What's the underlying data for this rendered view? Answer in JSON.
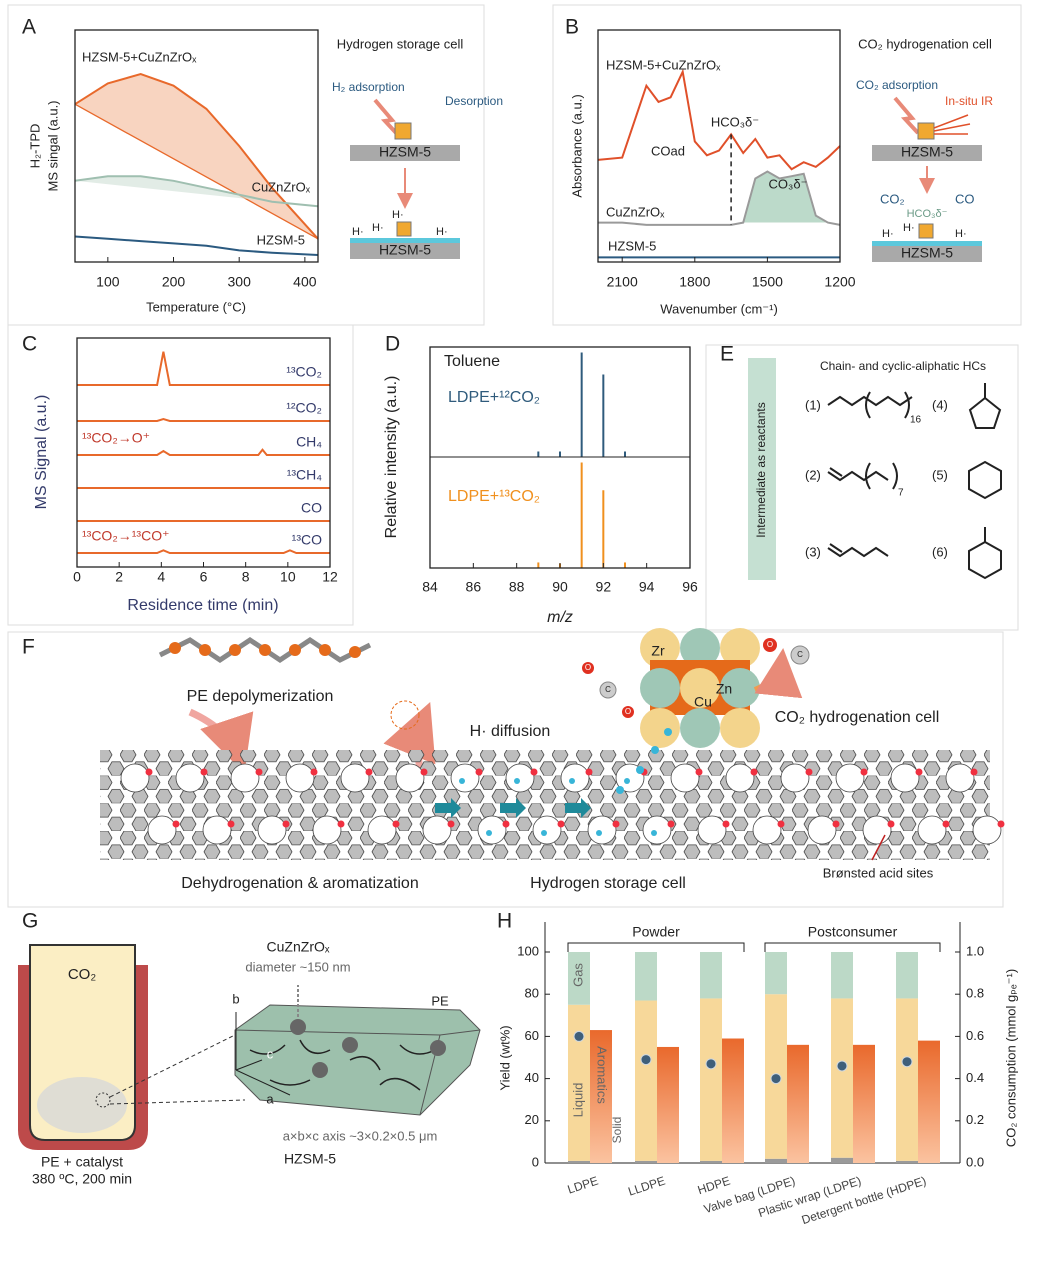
{
  "panel_labels": [
    "A",
    "B",
    "C",
    "D",
    "E",
    "F",
    "G",
    "H"
  ],
  "chart_data": [
    {
      "type": "line",
      "ylabel": [
        "H₂-TPD",
        "MS singal (a.u.)"
      ],
      "xlabel": "Temperature (°C)",
      "x": [
        50,
        100,
        150,
        200,
        250,
        300,
        350,
        420
      ],
      "xlim": [
        50,
        420
      ],
      "xticks": [
        100,
        200,
        300,
        400
      ],
      "ylim": [
        0,
        10
      ],
      "series": [
        {
          "name": "HZSM-5+CuZnZrOₓ",
          "color": "#e8692b",
          "values": [
            6.8,
            7.7,
            8.1,
            7.6,
            6.6,
            5.0,
            3.2,
            1.0
          ]
        },
        {
          "name": "CuZnZrOₓ",
          "color": "#9fbfb0",
          "values": [
            3.5,
            3.7,
            3.7,
            3.5,
            3.2,
            2.9,
            2.6,
            2.4
          ]
        },
        {
          "name": "HZSM-5",
          "color": "#2b5a80",
          "values": [
            1.1,
            1.0,
            0.9,
            0.8,
            0.7,
            0.5,
            0.4,
            0.3
          ]
        }
      ]
    },
    {
      "type": "line",
      "ylabel": "Absorbance (a.u.)",
      "xlabel": "Wavenumber (cm⁻¹)",
      "x": [
        2200,
        2100,
        2000,
        1950,
        1900,
        1850,
        1800,
        1750,
        1700,
        1650,
        1600,
        1550,
        1500,
        1450,
        1400,
        1350,
        1300,
        1250,
        1200
      ],
      "xlim": [
        2200,
        1200
      ],
      "xticks": [
        2100,
        1800,
        1500,
        1200
      ],
      "ylim": [
        0,
        10
      ],
      "annotations": [
        "HCO₃δ⁻",
        "COad",
        "CO₃δ⁻"
      ],
      "series": [
        {
          "name": "HZSM-5+CuZnZrOₓ",
          "color": "#e0502a",
          "values": [
            4.4,
            4.5,
            7.6,
            6.9,
            7.1,
            8.2,
            5.2,
            4.6,
            4.8,
            5.5,
            4.7,
            5.3,
            4.5,
            4.6,
            4.0,
            4.3,
            4.1,
            4.5,
            5.0
          ]
        },
        {
          "name": "CuZnZrOₓ",
          "color": "#9a9a9a",
          "values": [
            1.7,
            1.7,
            1.6,
            1.6,
            1.6,
            1.6,
            1.6,
            1.6,
            1.6,
            1.6,
            1.7,
            3.6,
            3.9,
            3.6,
            3.7,
            3.8,
            2.0,
            1.7,
            1.6
          ]
        },
        {
          "name": "HZSM-5",
          "color": "#2b5a80",
          "values": [
            0.2,
            0.2,
            0.2,
            0.2,
            0.2,
            0.2,
            0.2,
            0.2,
            0.2,
            0.2,
            0.2,
            0.2,
            0.2,
            0.2,
            0.2,
            0.2,
            0.2,
            0.2,
            0.2
          ]
        }
      ]
    },
    {
      "type": "line",
      "ylabel": "MS Signal (a.u.)",
      "xlabel": "Residence time (min)",
      "x": [
        0,
        2,
        3.8,
        4.1,
        4.4,
        6,
        8.6,
        8.8,
        9.0,
        9.8,
        10.1,
        10.4,
        12
      ],
      "xlim": [
        0,
        12
      ],
      "xticks": [
        0,
        2,
        4,
        6,
        8,
        10,
        12
      ],
      "ylim": [
        0,
        6
      ],
      "annotations": [
        "¹³CO₂→O⁺",
        "¹³CO₂→¹³CO⁺"
      ],
      "series": [
        {
          "name": "¹³CO₂",
          "color": "#e8692b",
          "values": [
            0,
            0,
            0,
            5,
            0,
            0,
            0,
            0,
            0,
            0,
            0,
            0,
            0
          ]
        },
        {
          "name": "¹²CO₂",
          "color": "#e8692b",
          "values": [
            0,
            0,
            0,
            0.3,
            0,
            0,
            0,
            0,
            0,
            0,
            0,
            0,
            0
          ]
        },
        {
          "name": "CH₄",
          "color": "#e8692b",
          "values": [
            0,
            0,
            0,
            0.6,
            0,
            0,
            0,
            0.8,
            0,
            0,
            0,
            0,
            0
          ]
        },
        {
          "name": "¹³CH₄",
          "color": "#e8692b",
          "values": [
            0,
            0,
            0,
            0,
            0,
            0,
            0,
            0,
            0,
            0,
            0,
            0,
            0
          ]
        },
        {
          "name": "CO",
          "color": "#e8692b",
          "values": [
            0,
            0,
            0,
            0,
            0,
            0,
            0,
            0,
            0,
            0,
            0,
            0,
            0
          ]
        },
        {
          "name": "¹³CO",
          "color": "#e8692b",
          "values": [
            0,
            0,
            0,
            0.4,
            0,
            0,
            0,
            0,
            0,
            0,
            0.4,
            0,
            0
          ]
        }
      ]
    },
    {
      "type": "bar",
      "ylabel": "Relative intensity (a.u.)",
      "label": "Toluene",
      "x": [
        89,
        90,
        91,
        92,
        93
      ],
      "xlim": [
        84,
        96
      ],
      "ylim": [
        0,
        1
      ],
      "series": [
        {
          "name": "LDPE+¹²CO₂",
          "color": "#2f5b7c",
          "values": [
            0.05,
            0.05,
            0.95,
            0.75,
            0.05
          ]
        }
      ]
    },
    {
      "type": "bar",
      "xlabel": "m/z",
      "x": [
        89,
        90,
        91,
        92,
        93
      ],
      "xlim": [
        84,
        96
      ],
      "xticks": [
        84,
        86,
        88,
        90,
        92,
        94,
        96
      ],
      "ylim": [
        0,
        1
      ],
      "series": [
        {
          "name": "LDPE+¹³CO₂",
          "color": "#f0901e",
          "values": [
            0.05,
            0.04,
            0.95,
            0.7,
            0.05
          ]
        }
      ]
    },
    {
      "type": "bar",
      "ylabel": "Yield (wt%)",
      "y2label": "CO₂ consumption (mmol gₚₑ⁻¹)",
      "categories": [
        "LDPE",
        "LLDPE",
        "HDPE",
        "Valve bag (LDPE)",
        "Plastic wrap (LDPE)",
        "Detergent bottle (HDPE)"
      ],
      "groups": [
        "Powder",
        "Postconsumer"
      ],
      "ylim": [
        0,
        100
      ],
      "yticks": [
        0,
        20,
        40,
        60,
        80,
        100
      ],
      "y2lim": [
        0,
        1
      ],
      "y2ticks": [
        {
          "value": 0,
          "label": "0.0"
        },
        0.2,
        0.4,
        0.6,
        0.8,
        {
          "value": 1,
          "label": "1.0"
        }
      ],
      "series": [
        {
          "name": "Solid",
          "color": "#9a9a9a",
          "stack": "yield",
          "values": [
            1,
            1,
            1,
            2,
            2.5,
            1
          ]
        },
        {
          "name": "Liquid",
          "color": "#f7d89a",
          "stack": "yield",
          "values": [
            74,
            76,
            77,
            78,
            75.5,
            77
          ]
        },
        {
          "name": "Gas",
          "color": "#bcd9c7",
          "stack": "yield",
          "values": [
            25,
            23,
            22,
            20,
            22,
            22
          ]
        },
        {
          "name": "Aromatics",
          "color": "#e9692c",
          "values": [
            63,
            55,
            59,
            56,
            56,
            58
          ]
        },
        {
          "color": "#3f5f7a",
          "axis": "y2",
          "values": [
            0.6,
            0.49,
            0.47,
            0.4,
            0.46,
            0.48
          ]
        }
      ]
    }
  ],
  "panels": {
    "A": {
      "title": "Hydrogen storage cell",
      "adsorption": "H₂ adsorption",
      "desorption": "Desorption",
      "support_top": "HZSM-5",
      "support_bottom": "HZSM-5",
      "hydrogen_labels": [
        "H·",
        "H·",
        "H·",
        "H·"
      ]
    },
    "B": {
      "title": "CO₂ hydrogenation cell",
      "adsorption": "CO₂ adsorption",
      "ir": "In-situ IR",
      "support_top": "HZSM-5",
      "reactant": "CO₂",
      "intermediate": "HCO₃δ⁻",
      "product": "CO",
      "support_bottom": "HZSM-5",
      "hydrogen_labels": [
        "H·",
        "H·",
        "H·"
      ]
    },
    "E": {
      "side_label": "Intermediate as reactants",
      "title": "Chain- and cyclic-aliphatic HCs",
      "items": [
        "(1)",
        "(2)",
        "(3)",
        "(4)",
        "(5)",
        "(6)"
      ],
      "subscripts": [
        "16",
        "7"
      ]
    },
    "F": {
      "depolymerization": "PE depolymerization",
      "diffusion": "H· diffusion",
      "co2_cell": "CO₂ hydrogenation cell",
      "metals": [
        "Zr",
        "Zn",
        "Cu"
      ],
      "atoms": [
        "O",
        "C",
        "O",
        "O",
        "C"
      ],
      "aromatization": "Dehydrogenation & aromatization",
      "storage": "Hydrogen storage cell",
      "acid_sites": "Brønsted acid sites"
    },
    "G": {
      "gas": "CO₂",
      "conditions": [
        "PE + catalyst",
        "380 ºC, 200 min"
      ],
      "particle": "CuZnZrOₓ",
      "diameter": "diameter ~150 nm",
      "polymer": "PE",
      "axes": [
        "b",
        "c",
        "a"
      ],
      "dimensions": "a×b×c axis ~3×0.2×0.5 μm",
      "zeolite": "HZSM-5"
    }
  }
}
